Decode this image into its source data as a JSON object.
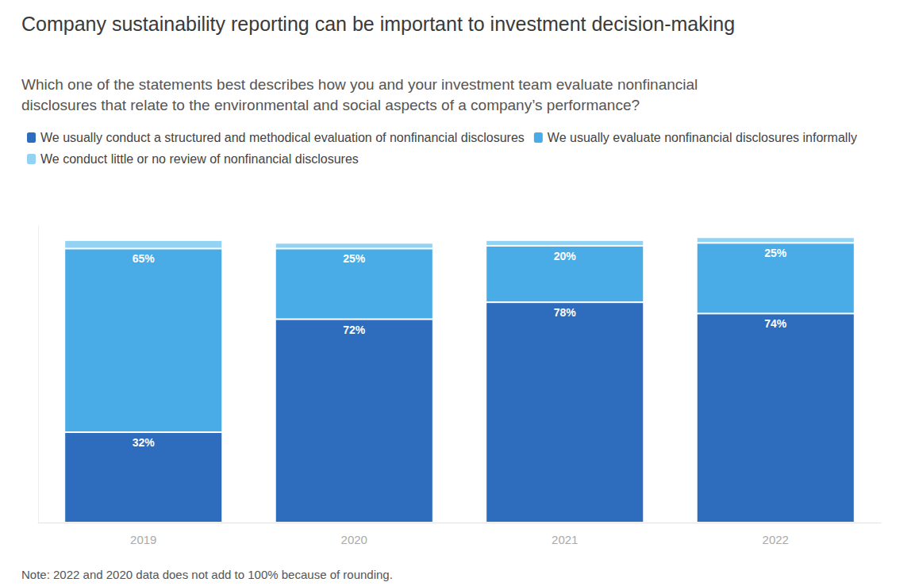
{
  "chart_data": {
    "type": "bar",
    "title": "Company sustainability reporting can be important to investment decision-making",
    "subtitle": "Which one of the statements best describes how you and your investment team evaluate nonfinancial disclosures that relate to the environmental and social aspects of a company’s performance?",
    "note": "Note: 2022 and 2020 data does not add to 100% because of rounding.",
    "categories": [
      "2019",
      "2020",
      "2021",
      "2022"
    ],
    "series": [
      {
        "name": "We usually conduct a structured and methodical evaluation of nonfinancial disclosures",
        "color": "#2e6dbd",
        "values": [
          32,
          72,
          78,
          74
        ],
        "value_labels": [
          "32%",
          "72%",
          "78%",
          "74%"
        ],
        "data_labels": true
      },
      {
        "name": "We usually evaluate nonfinancial disclosures informally",
        "color": "#4aace6",
        "values": [
          65,
          25,
          20,
          25
        ],
        "value_labels": [
          "65%",
          "25%",
          "20%",
          "25%"
        ],
        "data_labels": true
      },
      {
        "name": "We conduct little or no review of nonfinancial disclosures",
        "color": "#92d2f2",
        "values": [
          3,
          2,
          2,
          2
        ],
        "data_labels": false
      }
    ],
    "stacked": true,
    "ylim": [
      0,
      105
    ],
    "tick_labels": "x",
    "grid": false,
    "legend": "top-left"
  }
}
